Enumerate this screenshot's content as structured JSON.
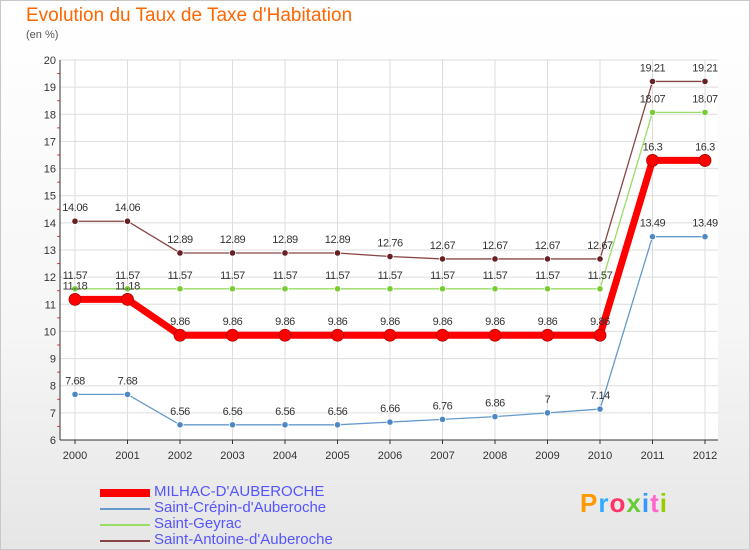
{
  "page": {
    "title": "Evolution du Taux de Taxe d'Habitation",
    "subtitle": "(en %)",
    "brand": "Proxiti",
    "brand_colors": [
      "#ff9900",
      "#33aaff",
      "#ff3366",
      "#66cc33",
      "#3399ff",
      "#ff66cc",
      "#99cc00"
    ]
  },
  "chart_data": {
    "type": "line",
    "title": "Evolution du Taux de Taxe d'Habitation",
    "ylabel": "(en %)",
    "xlabel": "",
    "categories": [
      "2000",
      "2001",
      "2002",
      "2003",
      "2004",
      "2005",
      "2006",
      "2007",
      "2008",
      "2009",
      "2010",
      "2011",
      "2012"
    ],
    "ylim": [
      6,
      20
    ],
    "yticks": [
      6,
      7,
      8,
      9,
      10,
      11,
      12,
      13,
      14,
      15,
      16,
      17,
      18,
      19,
      20
    ],
    "grid": true,
    "legend": "bottom-left",
    "series": [
      {
        "name": "MILHAC-D'AUBEROCHE",
        "color": "#ff0000",
        "marker_color": "#cc0000",
        "emphasis": true,
        "values": [
          11.18,
          11.18,
          9.86,
          9.86,
          9.86,
          9.86,
          9.86,
          9.86,
          9.86,
          9.86,
          9.86,
          16.3,
          16.3
        ],
        "labels": [
          "11.18",
          "11.18",
          "9.86",
          "9.86",
          "9.86",
          "9.86",
          "9.86",
          "9.86",
          "9.86",
          "9.86",
          "9.86",
          "16.3",
          "16.3"
        ]
      },
      {
        "name": "Saint-Crépin-d'Auberoche",
        "color": "#6699cc",
        "marker_color": "#4d88c4",
        "emphasis": false,
        "values": [
          7.68,
          7.68,
          6.56,
          6.56,
          6.56,
          6.56,
          6.66,
          6.76,
          6.86,
          7,
          7.14,
          13.49,
          13.49
        ],
        "labels": [
          "7.68",
          "7.68",
          "6.56",
          "6.56",
          "6.56",
          "6.56",
          "6.66",
          "6.76",
          "6.86",
          "7",
          "7.14",
          "13.49",
          "13.49"
        ]
      },
      {
        "name": "Saint-Geyrac",
        "color": "#99dd66",
        "marker_color": "#77cc33",
        "emphasis": false,
        "values": [
          11.57,
          11.57,
          11.57,
          11.57,
          11.57,
          11.57,
          11.57,
          11.57,
          11.57,
          11.57,
          11.57,
          18.07,
          18.07
        ],
        "labels": [
          "11.57",
          "11.57",
          "11.57",
          "11.57",
          "11.57",
          "11.57",
          "11.57",
          "11.57",
          "11.57",
          "11.57",
          "11.57",
          "18.07",
          "18.07"
        ]
      },
      {
        "name": "Saint-Antoine-d'Auberoche",
        "color": "#884444",
        "marker_color": "#662222",
        "emphasis": false,
        "values": [
          14.06,
          14.06,
          12.89,
          12.89,
          12.89,
          12.89,
          12.76,
          12.67,
          12.67,
          12.67,
          12.67,
          19.21,
          19.21
        ],
        "labels": [
          "14.06",
          "14.06",
          "12.89",
          "12.89",
          "12.89",
          "12.89",
          "12.76",
          "12.67",
          "12.67",
          "12.67",
          "12.67",
          "19.21",
          "19.21"
        ]
      }
    ]
  }
}
